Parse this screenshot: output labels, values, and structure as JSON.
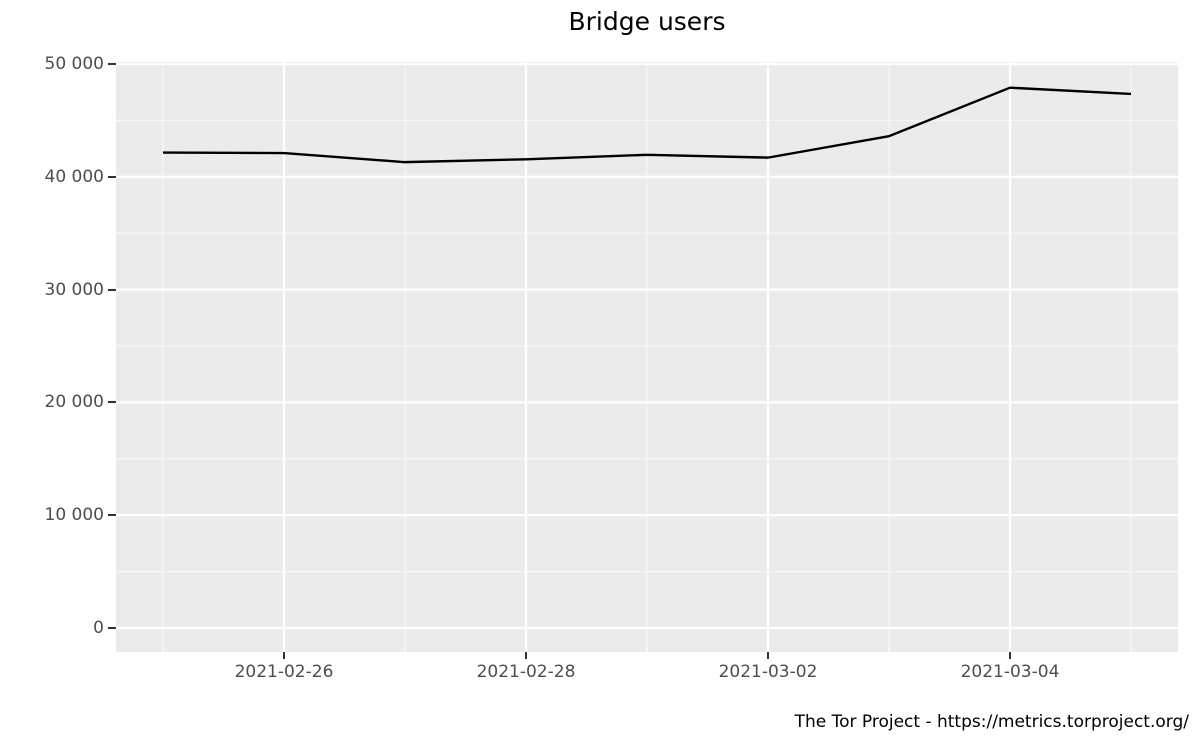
{
  "title": "Bridge users",
  "caption": "The Tor Project - https://metrics.torproject.org/",
  "colors": {
    "background": "#FFFFFF",
    "panel_bg": "#EBEBEB",
    "grid_major": "#FFFFFF",
    "grid_minor": "#F7F7F7",
    "line": "#000000",
    "axis_text": "#4D4D4D",
    "tick_mark": "#333333",
    "title_text": "#000000"
  },
  "chart_data": {
    "type": "line",
    "title": "Bridge users",
    "xlabel": "",
    "ylabel": "",
    "legend": "none",
    "grid": true,
    "ylim": [
      0,
      50000
    ],
    "x": [
      "2021-02-25",
      "2021-02-26",
      "2021-02-27",
      "2021-02-28",
      "2021-03-01",
      "2021-03-02",
      "2021-03-03",
      "2021-03-04",
      "2021-03-05"
    ],
    "values": [
      42150,
      42100,
      41300,
      41550,
      41950,
      41700,
      43600,
      47900,
      47350
    ],
    "y_ticks": [
      {
        "value": 0,
        "label": "0"
      },
      {
        "value": 10000,
        "label": "10 000"
      },
      {
        "value": 20000,
        "label": "20 000"
      },
      {
        "value": 30000,
        "label": "30 000"
      },
      {
        "value": 40000,
        "label": "40 000"
      },
      {
        "value": 50000,
        "label": "50 000"
      }
    ],
    "y_minor_values": [
      5000,
      15000,
      25000,
      35000,
      45000
    ],
    "x_ticks": [
      {
        "index": 1,
        "label": "2021-02-26"
      },
      {
        "index": 3,
        "label": "2021-02-28"
      },
      {
        "index": 5,
        "label": "2021-03-02"
      },
      {
        "index": 7,
        "label": "2021-03-04"
      }
    ],
    "x_minor_indices": [
      0,
      2,
      4,
      6,
      8
    ]
  }
}
